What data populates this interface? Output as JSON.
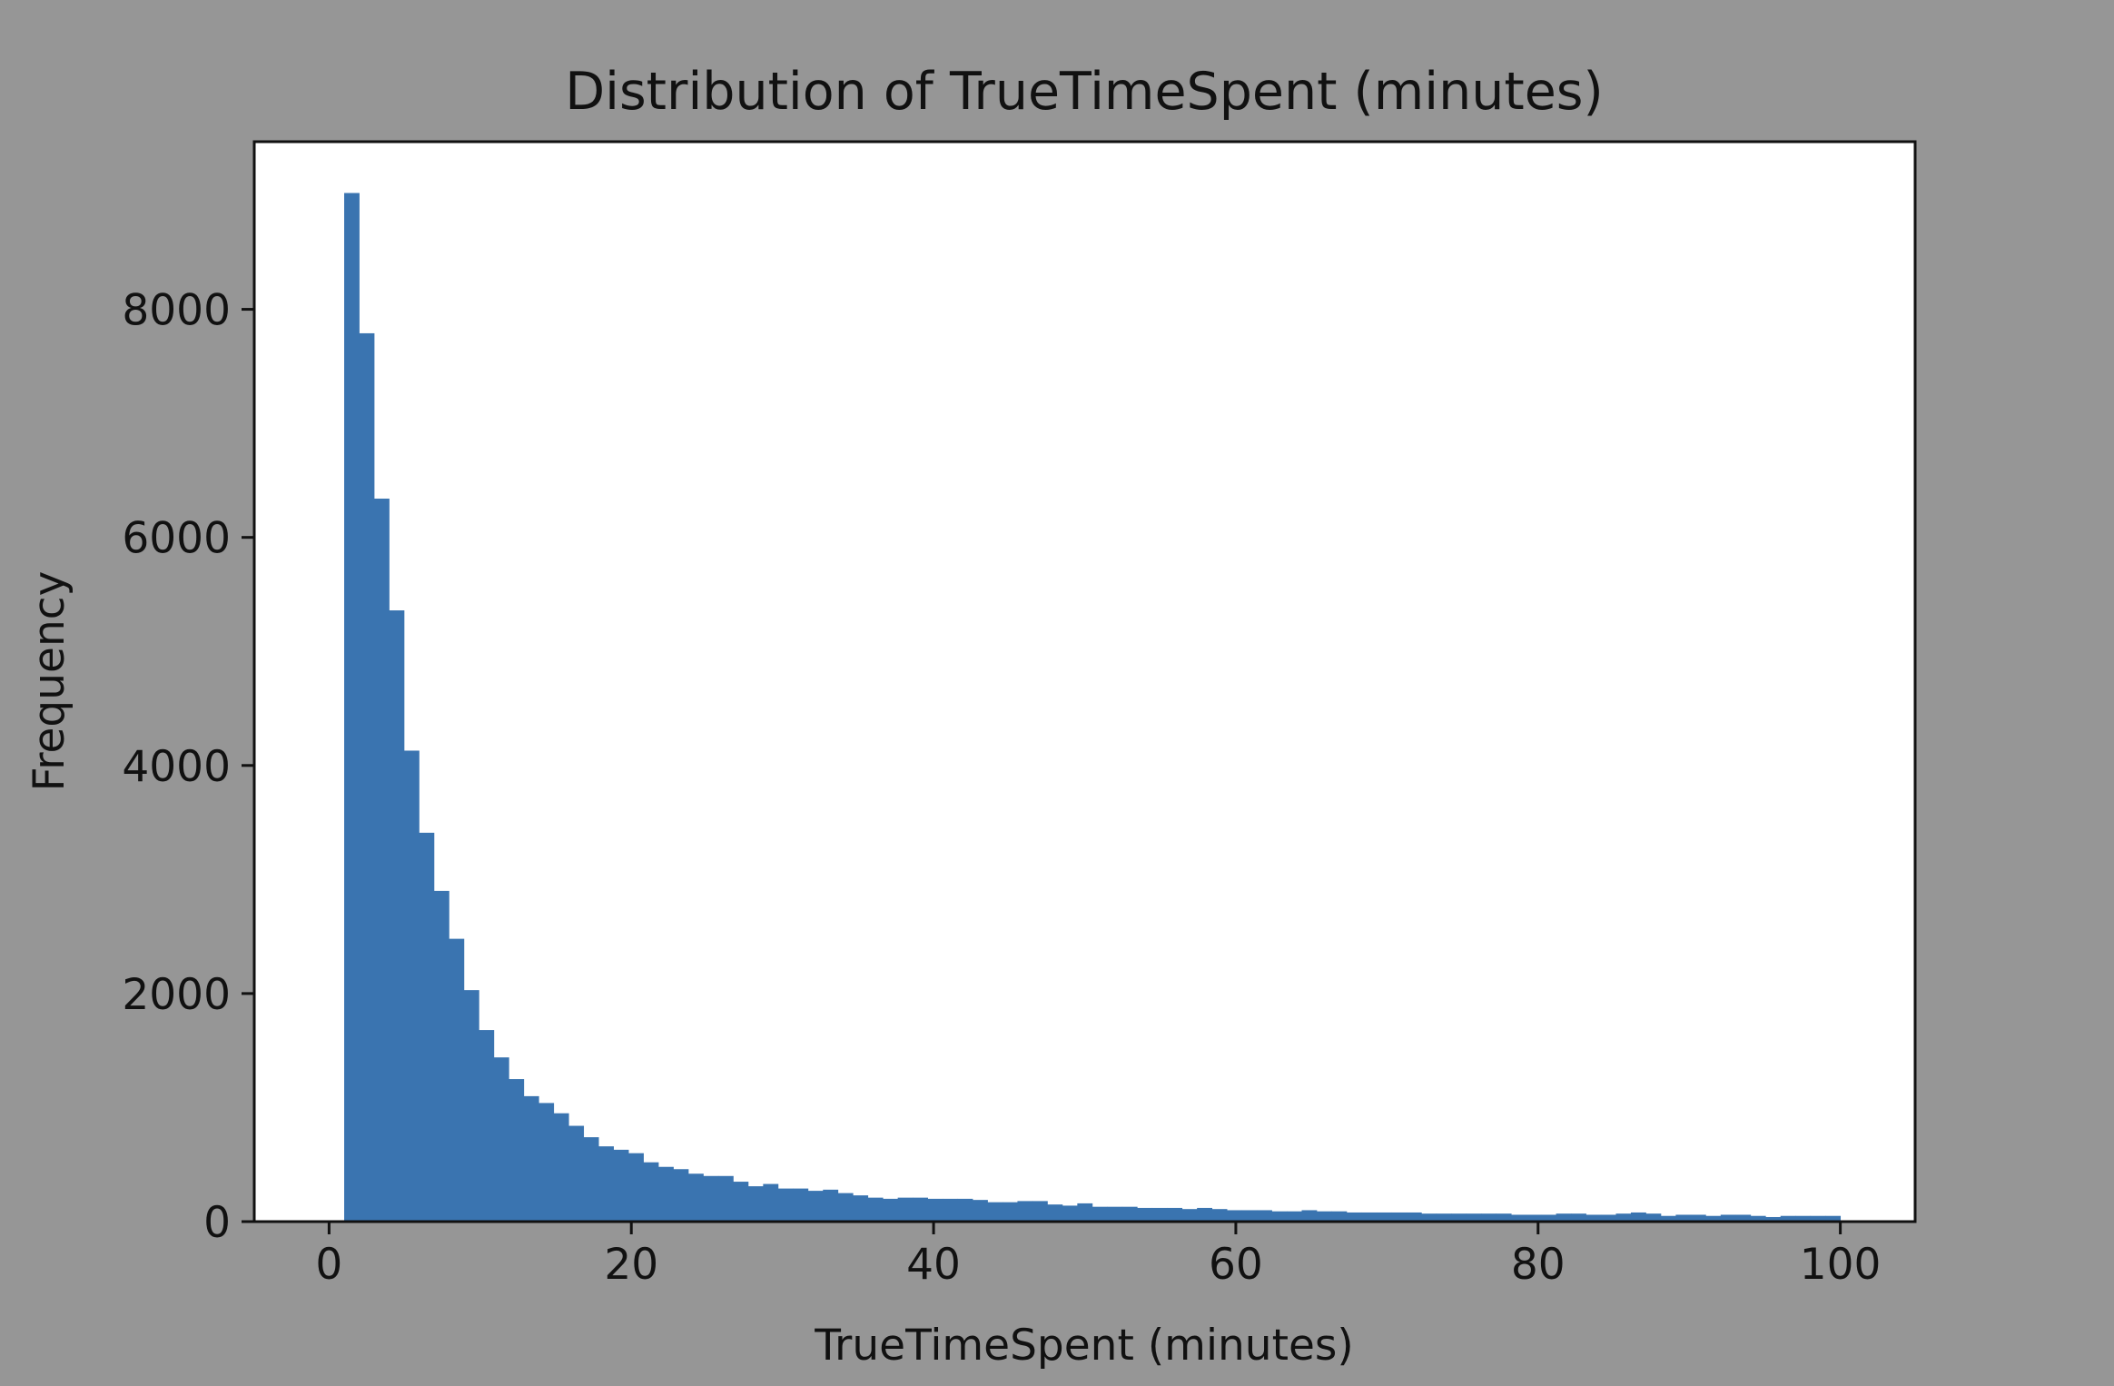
{
  "chart_data": {
    "type": "bar",
    "title": "Distribution of TrueTimeSpent (minutes)",
    "xlabel": "TrueTimeSpent (minutes)",
    "ylabel": "Frequency",
    "xlim": [
      -4.95,
      104.95
    ],
    "ylim": [
      0,
      9470
    ],
    "xticks": [
      0,
      20,
      40,
      60,
      80,
      100
    ],
    "yticks": [
      0,
      2000,
      4000,
      6000,
      8000
    ],
    "bin_start": 1,
    "bin_end": 100,
    "bin_count": 100,
    "values": [
      9020,
      7790,
      6340,
      5360,
      4130,
      3410,
      2900,
      2480,
      2030,
      1680,
      1440,
      1250,
      1100,
      1040,
      950,
      840,
      740,
      660,
      630,
      600,
      520,
      480,
      460,
      420,
      400,
      400,
      350,
      310,
      330,
      290,
      290,
      270,
      280,
      250,
      230,
      210,
      200,
      210,
      210,
      200,
      200,
      200,
      190,
      170,
      170,
      180,
      180,
      150,
      140,
      160,
      130,
      130,
      130,
      120,
      120,
      120,
      110,
      120,
      110,
      100,
      100,
      100,
      90,
      90,
      100,
      90,
      90,
      80,
      80,
      80,
      80,
      80,
      70,
      70,
      70,
      70,
      70,
      70,
      60,
      60,
      60,
      70,
      70,
      60,
      60,
      70,
      80,
      70,
      50,
      60,
      60,
      50,
      60,
      60,
      50,
      40,
      50,
      50,
      50,
      50
    ],
    "bar_color": "#3a74b0",
    "grid": false,
    "background": "#969696",
    "plot_background": "#ffffff"
  }
}
